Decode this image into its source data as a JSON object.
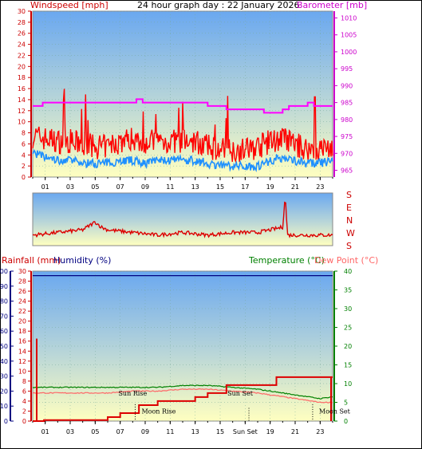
{
  "top_panel": {
    "title": "24 hour graph day : 22 January 2026",
    "left_label": "Windspeed [mph]",
    "right_label": "Barometer [mb]"
  },
  "dir_panel": {
    "labels": [
      "S",
      "E",
      "N",
      "W",
      "S"
    ]
  },
  "bottom_panel": {
    "left_label_rain": "Rainfall (mm)",
    "left_label_hum": "Humidity (%)",
    "right_label_temp": "Temperature (°C)",
    "right_label_dew": "Dew Point (°C)",
    "events": [
      {
        "name": "Sun Rise",
        "hour": 8.0,
        "pos": "upper"
      },
      {
        "name": "Moon Rise",
        "hour": 8.2,
        "pos": "lower"
      },
      {
        "name": "Sun Set",
        "hour": 16.6,
        "pos": "upper"
      },
      {
        "name": "Moon Set",
        "hour": 22.4,
        "pos": "lower"
      },
      {
        "name": "Sun Set",
        "hour": 17.3,
        "pos": "axis"
      }
    ]
  },
  "colors": {
    "wind_gust": "#ff0000",
    "wind_avg": "#1e90ff",
    "barometer": "#ff00ff",
    "direction": "#dd0000",
    "humidity": "#000080",
    "temperature": "#008000",
    "dewpoint": "#ff6666",
    "rainfall": "#dd0000",
    "axis_left_top": "#cc0000",
    "axis_right_top": "#cc00cc",
    "sky_top": "#6aa8f0",
    "ground_bottom": "#ffffc0"
  },
  "chart_data": [
    {
      "type": "line",
      "x_ticks": [
        "01",
        "03",
        "05",
        "07",
        "09",
        "11",
        "13",
        "15",
        "17",
        "19",
        "21",
        "23"
      ],
      "xlim": [
        0,
        24
      ],
      "ylim_left": [
        0,
        30
      ],
      "ylim_right": [
        963,
        1012
      ],
      "y_ticks_left": [
        0,
        2,
        4,
        6,
        8,
        10,
        12,
        14,
        16,
        18,
        20,
        22,
        24,
        26,
        28,
        30
      ],
      "y_ticks_right": [
        965,
        970,
        975,
        980,
        985,
        990,
        995,
        1000,
        1005,
        1010
      ],
      "series": [
        {
          "name": "Windspeed",
          "axis": "left",
          "x": [
            0,
            1,
            2,
            3,
            4,
            5,
            6,
            7,
            8,
            9,
            10,
            11,
            12,
            13,
            14,
            15,
            16,
            17,
            18,
            19,
            20,
            21,
            22,
            23,
            24
          ],
          "values": [
            4.5,
            3.5,
            3,
            3,
            2.5,
            2.5,
            2.5,
            3,
            3,
            2.5,
            3,
            3,
            3,
            3,
            2.5,
            2,
            2,
            2,
            2,
            3,
            3.5,
            3,
            2.5,
            2.5,
            3
          ]
        },
        {
          "name": "Gust",
          "axis": "left",
          "x": [
            0,
            1,
            2,
            3,
            4,
            5,
            6,
            7,
            8,
            9,
            10,
            11,
            12,
            13,
            14,
            15,
            16,
            17,
            18,
            19,
            20,
            21,
            22,
            23,
            24
          ],
          "values": [
            7,
            6.5,
            6,
            6,
            5.5,
            5,
            5,
            6,
            6.5,
            6,
            6,
            6,
            6,
            6,
            5,
            4.5,
            4.5,
            4.5,
            5,
            6,
            6.5,
            5.5,
            4.5,
            4.5,
            5
          ]
        },
        {
          "name": "Barometer",
          "axis": "right",
          "x": [
            0,
            0.8,
            1.3,
            7.8,
            8.3,
            8.8,
            13.5,
            14.0,
            14.5,
            15.5,
            17.5,
            18.5,
            20.0,
            20.5,
            22.0,
            22.5,
            24
          ],
          "values": [
            984,
            985,
            985,
            985,
            986,
            985,
            985,
            984,
            984,
            983,
            983,
            982,
            983,
            984,
            985,
            984,
            984
          ]
        }
      ]
    },
    {
      "type": "line",
      "x_ticks": [],
      "xlim": [
        0,
        24
      ],
      "series": [
        {
          "name": "Direction",
          "x": [
            0,
            2,
            4,
            5,
            5.5,
            6,
            8,
            10,
            12,
            14,
            16,
            18,
            20,
            20.2,
            20.4,
            21,
            22,
            24
          ],
          "values": [
            0.2,
            0.25,
            0.3,
            0.45,
            0.35,
            0.3,
            0.25,
            0.2,
            0.25,
            0.2,
            0.25,
            0.25,
            0.35,
            0.95,
            0.2,
            0.2,
            0.2,
            0.2
          ]
        }
      ]
    },
    {
      "type": "line",
      "x_ticks": [
        "01",
        "03",
        "05",
        "07",
        "09",
        "11",
        "13",
        "15",
        "Sun Set",
        "19",
        "21",
        "23"
      ],
      "xlim": [
        0,
        24
      ],
      "ylim_left_hum": [
        0,
        100
      ],
      "ylim_left_rain": [
        0,
        30
      ],
      "ylim_right": [
        0,
        40
      ],
      "y_ticks_hum": [
        0,
        10,
        20,
        30,
        40,
        50,
        60,
        70,
        80,
        90,
        100
      ],
      "y_ticks_rain": [
        0,
        2,
        4,
        6,
        8,
        10,
        12,
        14,
        16,
        18,
        20,
        22,
        24,
        26,
        28,
        30
      ],
      "y_ticks_right": [
        0,
        5,
        10,
        15,
        20,
        25,
        30,
        35,
        40
      ],
      "series": [
        {
          "name": "Humidity",
          "axis": "hum",
          "x": [
            0,
            24
          ],
          "values": [
            97,
            97
          ]
        },
        {
          "name": "Temperature",
          "axis": "right",
          "x": [
            0,
            2,
            4,
            6,
            8,
            10,
            12,
            14,
            16,
            18,
            20,
            22,
            23,
            24
          ],
          "values": [
            9,
            9,
            9,
            9,
            9,
            9,
            9.5,
            9.5,
            9,
            8.5,
            7.5,
            6.5,
            6,
            6.5
          ]
        },
        {
          "name": "Dew Point",
          "axis": "right",
          "x": [
            0,
            2,
            4,
            6,
            8,
            10,
            12,
            14,
            16,
            18,
            20,
            22,
            23,
            24
          ],
          "values": [
            7.5,
            7.5,
            7.5,
            7.5,
            8,
            8,
            8.5,
            8.5,
            8,
            7.5,
            6.5,
            5.5,
            5,
            5
          ]
        },
        {
          "name": "Rainfall",
          "axis": "rain",
          "x": [
            0,
            0.9,
            2.5,
            5.0,
            6.0,
            7.0,
            8.5,
            9.5,
            10.0,
            11.0,
            12.5,
            13.0,
            13.5,
            14.0,
            15.5,
            16.5,
            17.5,
            18.5,
            19.5,
            22.0,
            24
          ],
          "values": [
            0,
            0.2,
            0.2,
            0.2,
            0.8,
            1.6,
            3.2,
            3.2,
            4.0,
            4.0,
            4.0,
            4.8,
            4.8,
            5.6,
            7.2,
            7.2,
            7.2,
            7.2,
            8.8,
            8.8,
            8.8
          ]
        }
      ]
    }
  ]
}
